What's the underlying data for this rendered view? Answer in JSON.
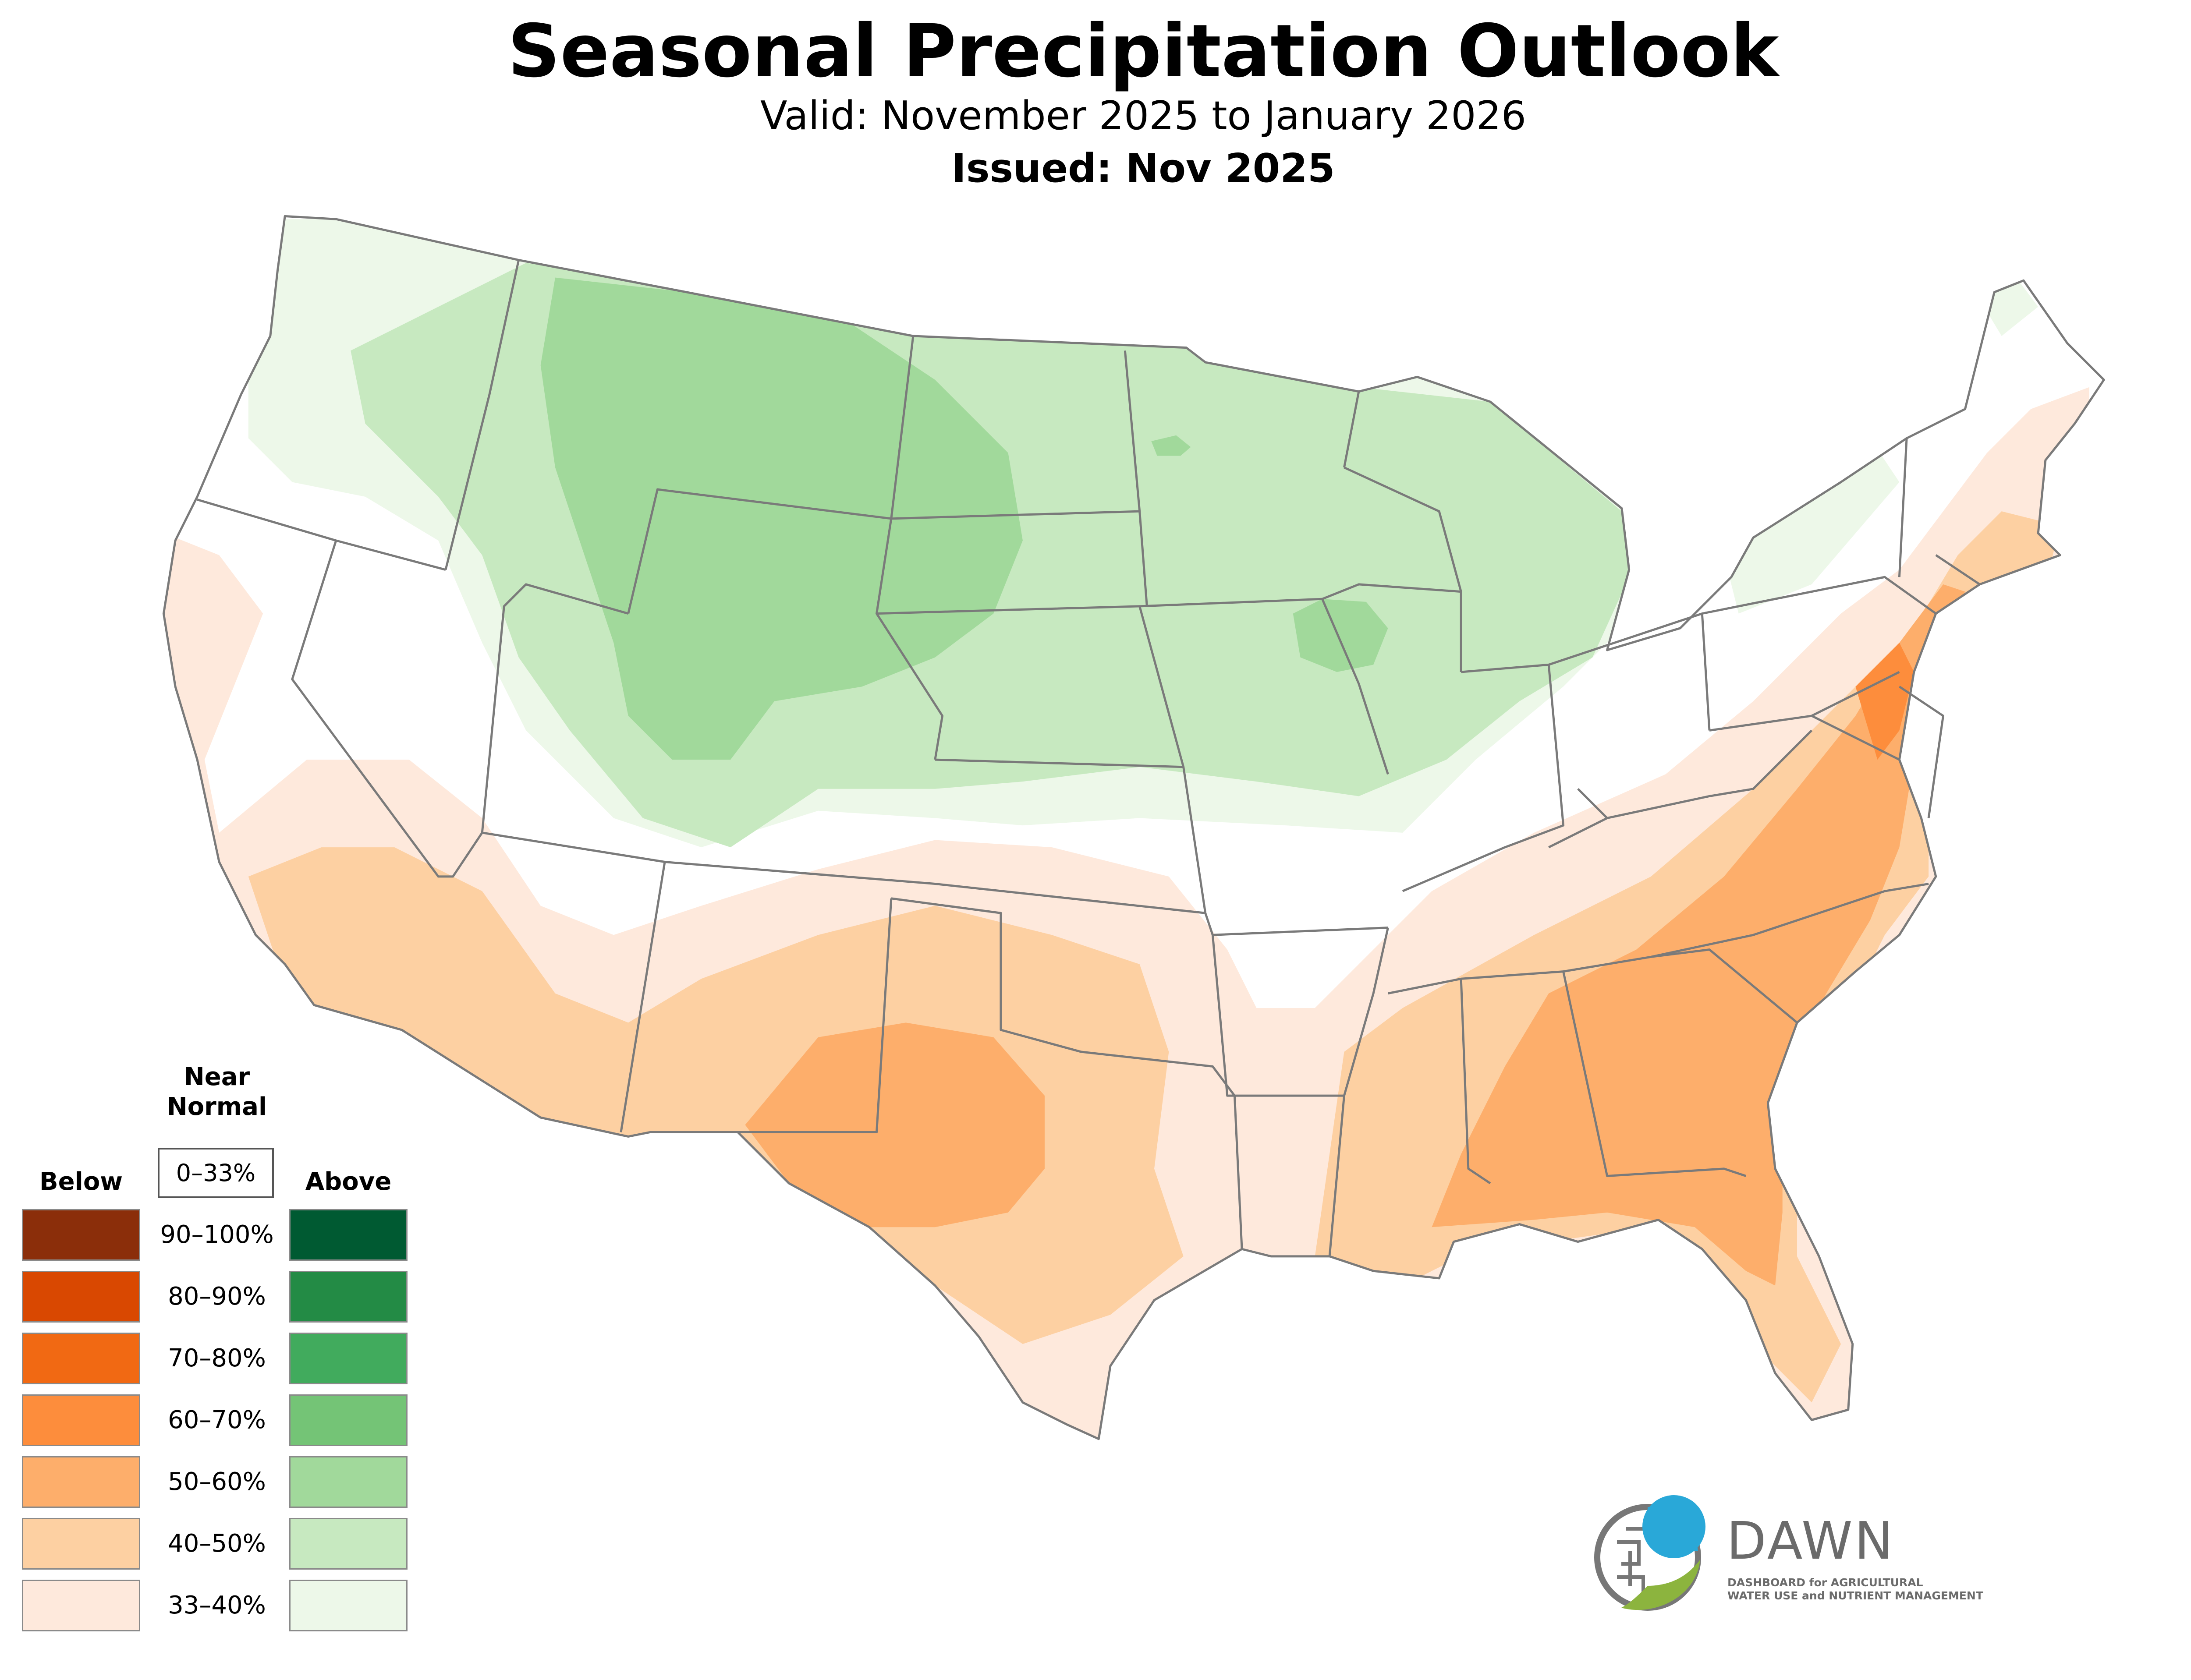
{
  "title": "Seasonal Precipitation Outlook",
  "valid": "Valid: November 2025 to January 2026",
  "issued": "Issued: Nov 2025",
  "legend": {
    "near_normal_label_line1": "Near",
    "near_normal_label_line2": "Normal",
    "near_normal_range": "0–33%",
    "below_label": "Below",
    "above_label": "Above",
    "rows": [
      {
        "range": "90–100%",
        "below_color": "#8b2e0a",
        "above_color": "#005a32"
      },
      {
        "range": "80–90%",
        "below_color": "#d94801",
        "above_color": "#238b45"
      },
      {
        "range": "70–80%",
        "below_color": "#f16913",
        "above_color": "#41ab5d"
      },
      {
        "range": "60–70%",
        "below_color": "#fd8d3c",
        "above_color": "#74c476"
      },
      {
        "range": "50–60%",
        "below_color": "#fdae6b",
        "above_color": "#a1d99b"
      },
      {
        "range": "40–50%",
        "below_color": "#fdd0a2",
        "above_color": "#c7e9c0"
      },
      {
        "range": "33–40%",
        "below_color": "#fee9dc",
        "above_color": "#edf8e9"
      }
    ]
  },
  "logo": {
    "name": "DAWN",
    "subtitle_line1": "DASHBOARD for AGRICULTURAL",
    "subtitle_line2": "WATER USE and NUTRIENT MANAGEMENT",
    "blue": "#29a8d8",
    "green": "#8cb43e",
    "gray": "#777777"
  },
  "colors": {
    "state_border": "#7a7a7a"
  }
}
